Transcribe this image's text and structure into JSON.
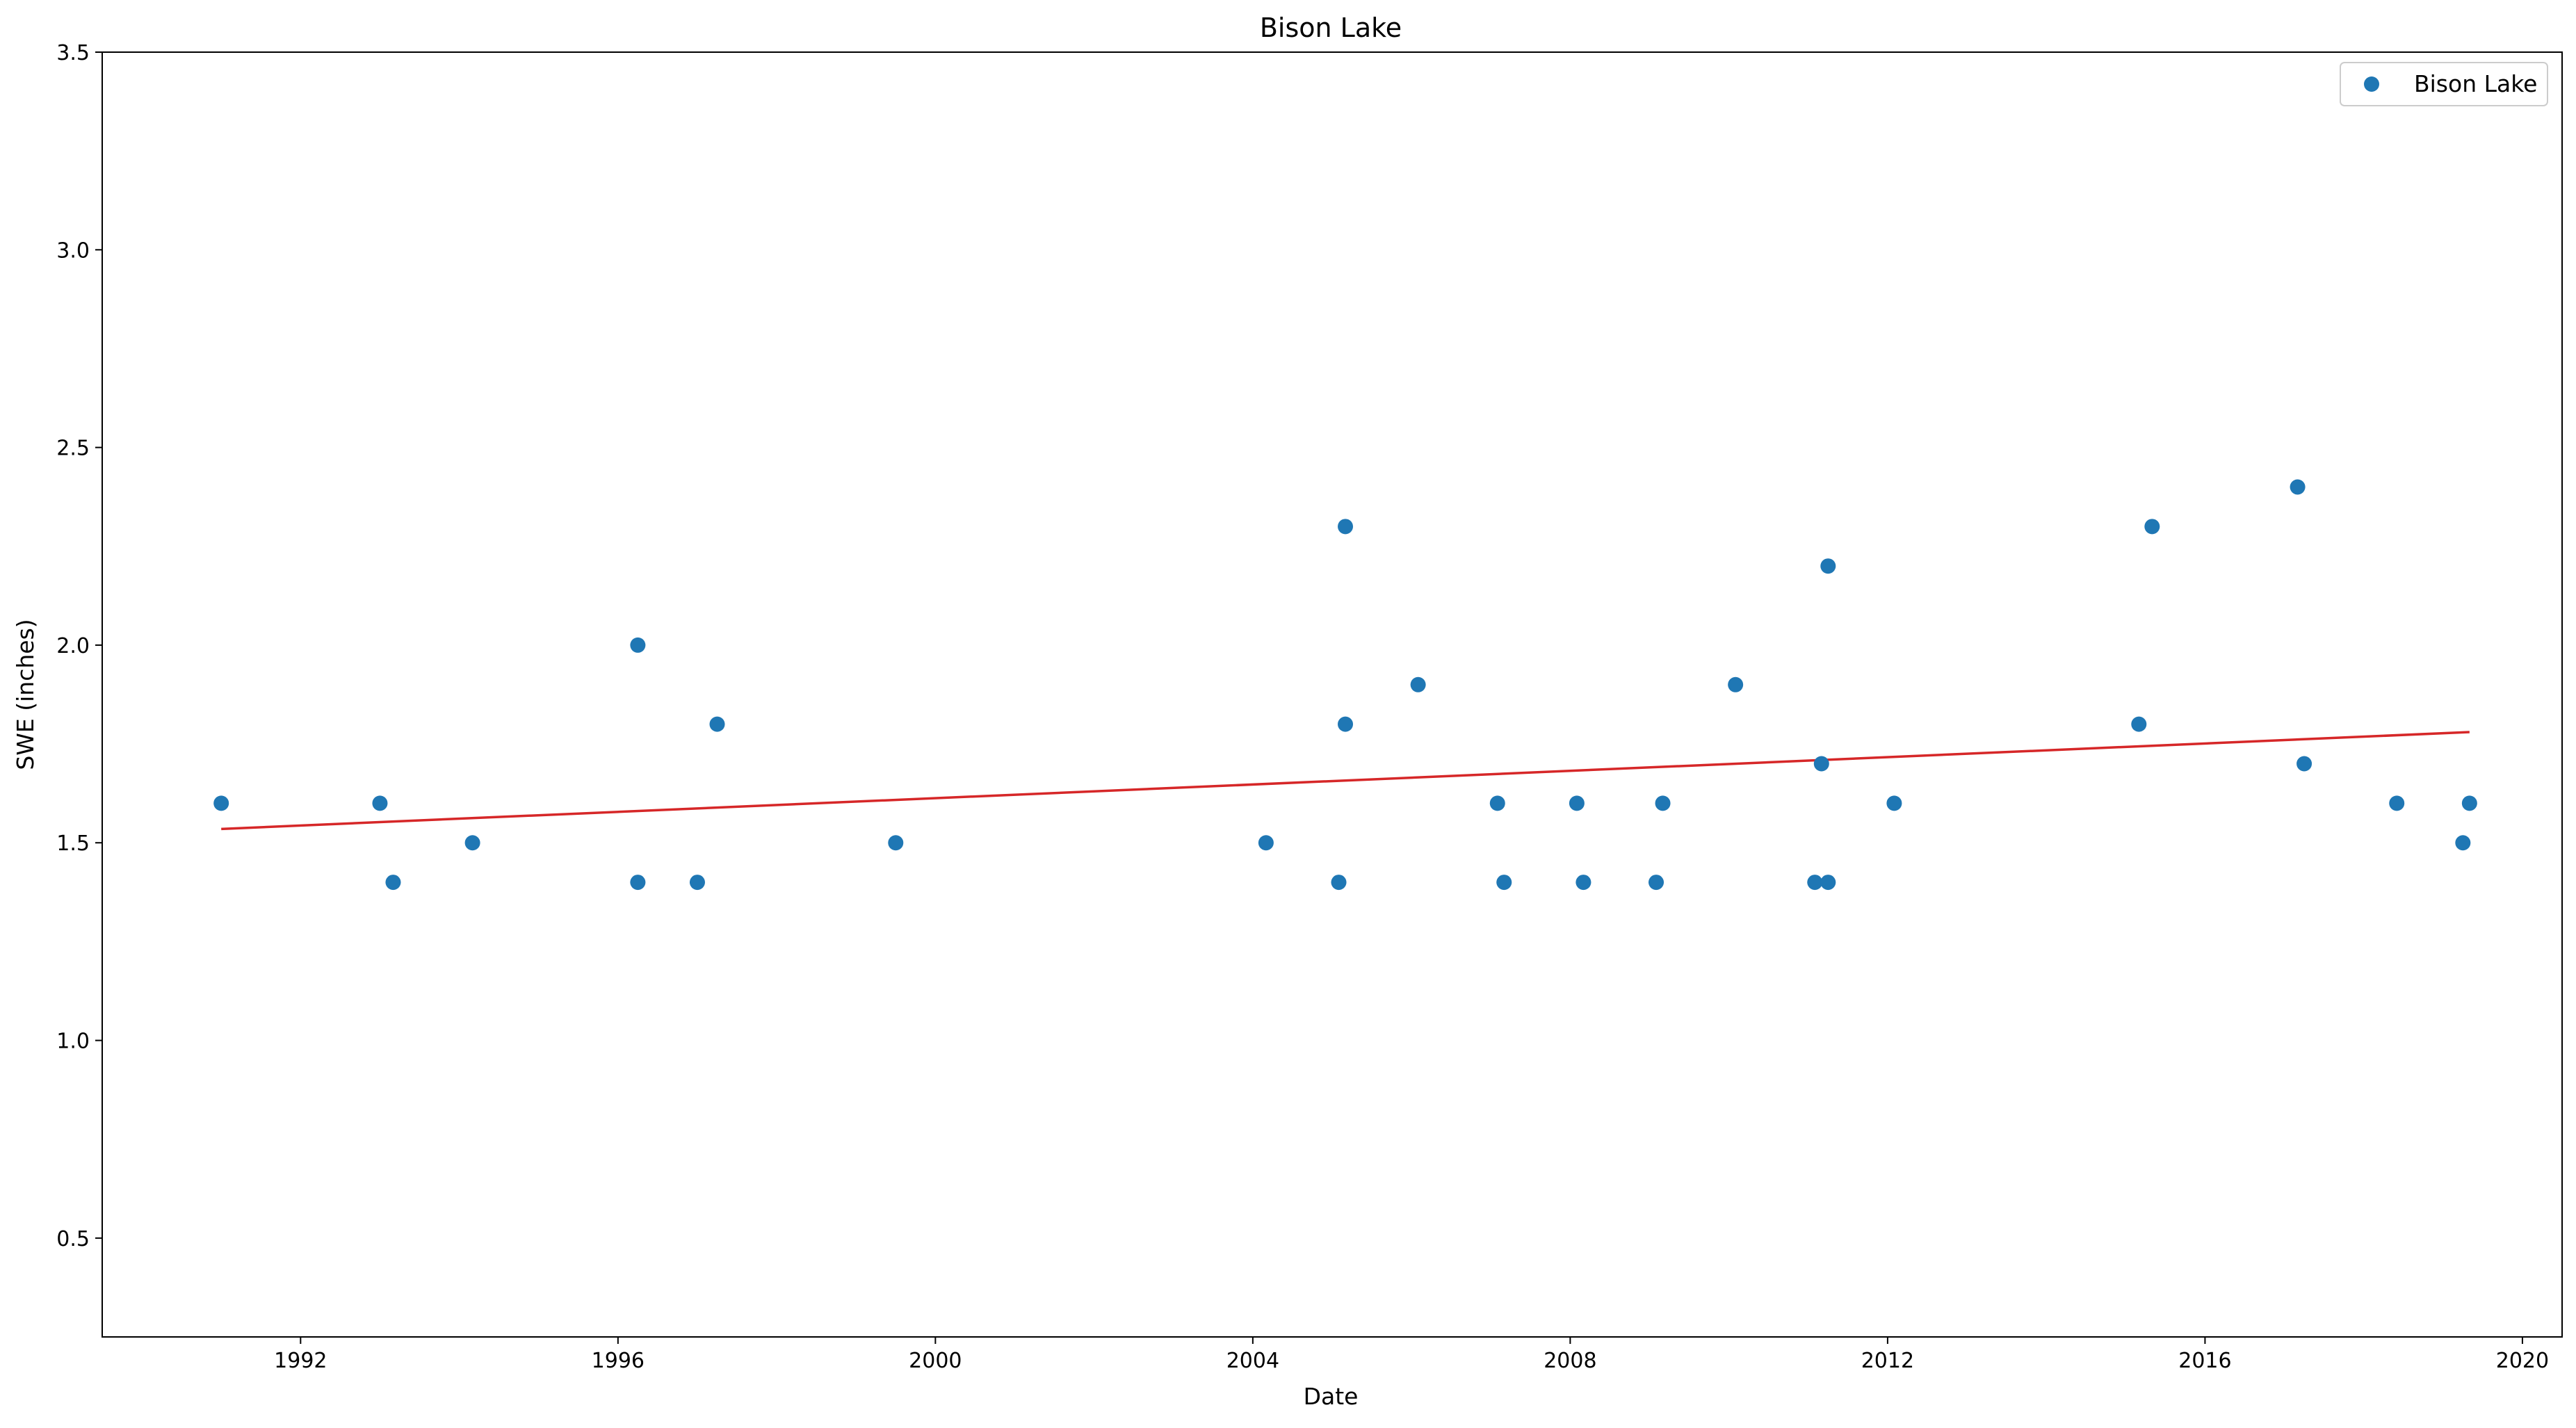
{
  "chart_data": {
    "type": "scatter",
    "title": "Bison Lake",
    "xlabel": "Date",
    "ylabel": "SWE (inches)",
    "xlim": [
      "1989-07-01",
      "2020-07-01"
    ],
    "ylim": [
      0.25,
      3.5
    ],
    "x_ticks": [
      "1992",
      "1996",
      "2000",
      "2004",
      "2008",
      "2012",
      "2016",
      "2020"
    ],
    "y_ticks": [
      "0.5",
      "1.0",
      "1.5",
      "2.0",
      "2.5",
      "3.0",
      "3.5"
    ],
    "grid": false,
    "legend_position": "top-right",
    "series": [
      {
        "name": "Bison Lake",
        "color": "#1f77b4",
        "marker": "circle",
        "points": [
          {
            "x": "1991-01-01",
            "y": 1.6
          },
          {
            "x": "1993-01-01",
            "y": 1.6
          },
          {
            "x": "1993-03-01",
            "y": 1.4
          },
          {
            "x": "1994-03-01",
            "y": 1.5
          },
          {
            "x": "1996-04-01",
            "y": 2.0
          },
          {
            "x": "1996-04-01",
            "y": 1.4
          },
          {
            "x": "1997-01-01",
            "y": 1.4
          },
          {
            "x": "1997-04-01",
            "y": 1.8
          },
          {
            "x": "1999-07-01",
            "y": 1.5
          },
          {
            "x": "2004-03-01",
            "y": 1.5
          },
          {
            "x": "2005-02-01",
            "y": 1.4
          },
          {
            "x": "2005-03-01",
            "y": 2.3
          },
          {
            "x": "2005-03-01",
            "y": 1.8
          },
          {
            "x": "2006-02-01",
            "y": 1.9
          },
          {
            "x": "2007-02-01",
            "y": 1.6
          },
          {
            "x": "2007-03-01",
            "y": 1.4
          },
          {
            "x": "2008-02-01",
            "y": 1.6
          },
          {
            "x": "2008-03-01",
            "y": 1.4
          },
          {
            "x": "2009-02-01",
            "y": 1.4
          },
          {
            "x": "2009-03-01",
            "y": 1.6
          },
          {
            "x": "2010-02-01",
            "y": 1.9
          },
          {
            "x": "2011-02-01",
            "y": 1.4
          },
          {
            "x": "2011-03-01",
            "y": 1.7
          },
          {
            "x": "2011-04-01",
            "y": 2.2
          },
          {
            "x": "2011-04-01",
            "y": 1.4
          },
          {
            "x": "2012-02-01",
            "y": 1.6
          },
          {
            "x": "2015-03-01",
            "y": 1.8
          },
          {
            "x": "2015-05-01",
            "y": 2.3
          },
          {
            "x": "2017-03-01",
            "y": 2.4
          },
          {
            "x": "2017-04-01",
            "y": 1.7
          },
          {
            "x": "2018-06-01",
            "y": 1.6
          },
          {
            "x": "2019-04-01",
            "y": 1.5
          },
          {
            "x": "2019-05-01",
            "y": 1.6
          }
        ]
      }
    ],
    "trend_line": {
      "color": "#d62728",
      "points": [
        {
          "x": "1991-01-01",
          "y": 1.535
        },
        {
          "x": "2019-05-01",
          "y": 1.78
        }
      ]
    }
  }
}
